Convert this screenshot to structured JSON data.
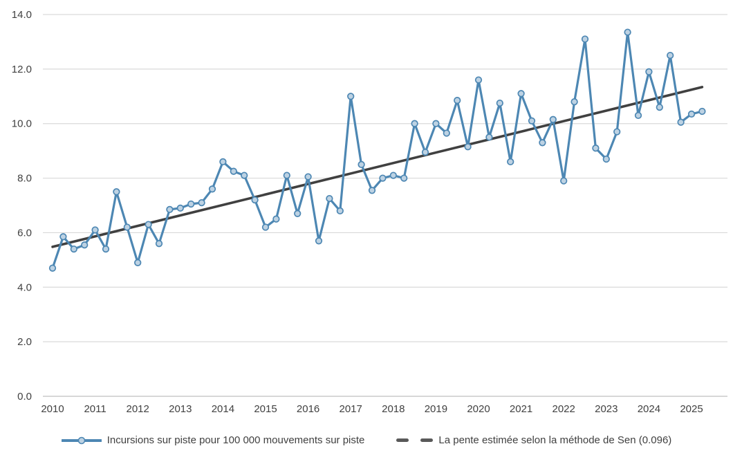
{
  "chart_data": {
    "type": "line",
    "title": "",
    "frequency": "quarterly",
    "start_period": "2010 Q1",
    "end_period": "2025 Q2",
    "series": [
      {
        "name": "Incursions sur piste pour 100 000 mouvements sur piste",
        "type": "line-markers",
        "color": "#4d87b3",
        "marker_fill": "#bdd2e3",
        "values": [
          4.7,
          5.85,
          5.4,
          5.55,
          6.1,
          5.4,
          7.5,
          6.2,
          4.9,
          6.3,
          5.6,
          6.85,
          6.9,
          7.05,
          7.1,
          7.6,
          8.6,
          8.25,
          8.1,
          7.2,
          6.2,
          6.5,
          8.1,
          6.7,
          8.05,
          5.7,
          7.25,
          6.8,
          11.0,
          8.5,
          7.55,
          8.0,
          8.1,
          8.0,
          10.0,
          8.95,
          10.0,
          9.65,
          10.85,
          9.15,
          11.6,
          9.5,
          10.75,
          8.6,
          11.1,
          10.1,
          9.3,
          10.15,
          7.9,
          10.8,
          13.1,
          9.1,
          8.7,
          9.7,
          13.35,
          10.3,
          11.9,
          10.6,
          12.5,
          10.05,
          10.35,
          10.45
        ]
      },
      {
        "name": "La pente estimée selon la méthode de Sen (0.096)",
        "type": "trend-line",
        "color": "#404040",
        "slope_per_quarter": 0.096,
        "start_value": 5.48,
        "end_value": 11.34
      }
    ],
    "y_axis": {
      "min": 0,
      "max": 14,
      "step": 2,
      "tick_labels": [
        "0.0",
        "2.0",
        "4.0",
        "6.0",
        "8.0",
        "10.0",
        "12.0",
        "14.0"
      ]
    },
    "x_axis": {
      "tick_labels": [
        "2010",
        "2011",
        "2012",
        "2013",
        "2014",
        "2015",
        "2016",
        "2017",
        "2018",
        "2019",
        "2020",
        "2021",
        "2022",
        "2023",
        "2024",
        "2025"
      ]
    },
    "grid": "horizontal",
    "legend_position": "bottom",
    "colors": {
      "gridline": "#d9d9d9",
      "axis_line": "#bfbfbf",
      "tick_text": "#404040"
    }
  }
}
